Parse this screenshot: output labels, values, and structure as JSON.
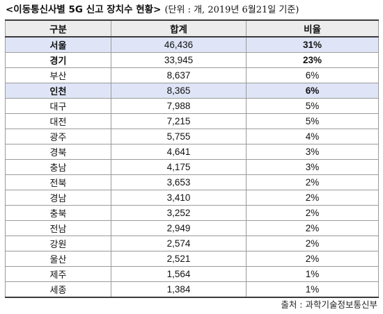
{
  "title": {
    "main": "<이동통신사별 5G 신고 장치수 현황>",
    "sub": "(단위 : 개, 2019년 6월21일 기준)"
  },
  "table": {
    "headers": [
      "구분",
      "합계",
      "비율"
    ],
    "rows": [
      {
        "region": "서울",
        "total": "46,436",
        "ratio": "31%",
        "highlight": true
      },
      {
        "region": "경기",
        "total": "33,945",
        "ratio": "23%",
        "highlight": false,
        "bold": true
      },
      {
        "region": "부산",
        "total": "8,637",
        "ratio": "6%",
        "highlight": false
      },
      {
        "region": "인천",
        "total": "8,365",
        "ratio": "6%",
        "highlight": true
      },
      {
        "region": "대구",
        "total": "7,988",
        "ratio": "5%",
        "highlight": false
      },
      {
        "region": "대전",
        "total": "7,215",
        "ratio": "5%",
        "highlight": false
      },
      {
        "region": "광주",
        "total": "5,755",
        "ratio": "4%",
        "highlight": false
      },
      {
        "region": "경북",
        "total": "4,641",
        "ratio": "3%",
        "highlight": false
      },
      {
        "region": "충남",
        "total": "4,175",
        "ratio": "3%",
        "highlight": false
      },
      {
        "region": "전북",
        "total": "3,653",
        "ratio": "2%",
        "highlight": false
      },
      {
        "region": "경남",
        "total": "3,410",
        "ratio": "2%",
        "highlight": false
      },
      {
        "region": "충북",
        "total": "3,252",
        "ratio": "2%",
        "highlight": false
      },
      {
        "region": "전남",
        "total": "2,949",
        "ratio": "2%",
        "highlight": false
      },
      {
        "region": "강원",
        "total": "2,574",
        "ratio": "2%",
        "highlight": false
      },
      {
        "region": "울산",
        "total": "2,521",
        "ratio": "2%",
        "highlight": false
      },
      {
        "region": "제주",
        "total": "1,564",
        "ratio": "1%",
        "highlight": false
      },
      {
        "region": "세종",
        "total": "1,384",
        "ratio": "1%",
        "highlight": false
      }
    ]
  },
  "source": "출처 : 과학기술정보통신부",
  "colors": {
    "highlight_row": "#dfe5f7",
    "header_bg": "#ececec",
    "border": "#9a9a9a"
  }
}
